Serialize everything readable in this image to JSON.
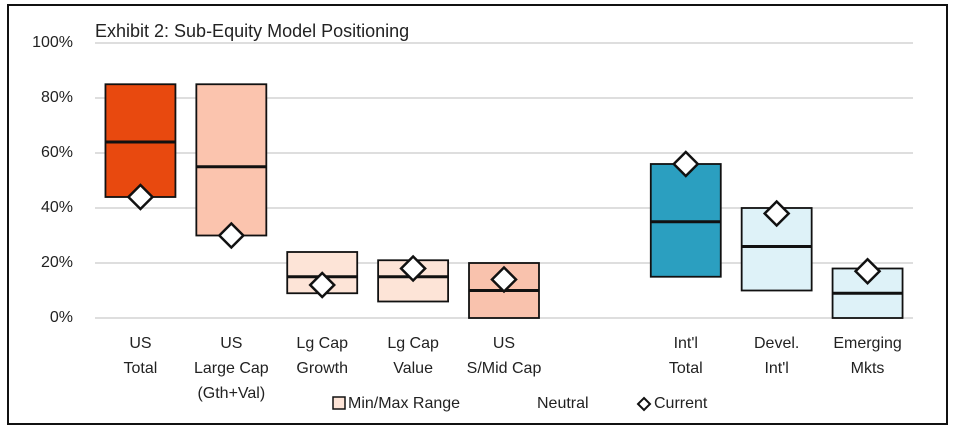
{
  "chart_data": {
    "type": "range",
    "title": "Exhibit 2: Sub-Equity Model Positioning",
    "categories": [
      [
        "US",
        "Total"
      ],
      [
        "US",
        "Large Cap",
        "(Gth+Val)"
      ],
      [
        "Lg Cap",
        "Growth"
      ],
      [
        "Lg Cap",
        "Value"
      ],
      [
        "US",
        "S/Mid Cap"
      ],
      null,
      [
        "Int'l",
        "Total"
      ],
      [
        "Devel.",
        "Int'l"
      ],
      [
        "Emerging",
        "Mkts"
      ]
    ],
    "colors": [
      "#e8490f",
      "#fbc4ae",
      "#fde4d7",
      "#fde4d7",
      "#f9c2ad",
      null,
      "#2b9fc0",
      "#def2f8",
      "#def2f8"
    ],
    "series": [
      {
        "name": "Min/Max Range",
        "low": [
          44,
          30,
          9,
          6,
          0,
          null,
          15,
          10,
          0
        ],
        "high": [
          85,
          85,
          24,
          21,
          20,
          null,
          56,
          40,
          18
        ]
      },
      {
        "name": "Neutral",
        "values": [
          64,
          55,
          15,
          15,
          10,
          null,
          35,
          26,
          9
        ]
      },
      {
        "name": "Current",
        "values": [
          44,
          30,
          12,
          18,
          14,
          null,
          56,
          38,
          17
        ]
      }
    ],
    "ylim": [
      0,
      100
    ],
    "yticks": [
      {
        "value": 0,
        "label": "0%"
      },
      {
        "value": 20,
        "label": "20%"
      },
      {
        "value": 40,
        "label": "40%"
      },
      {
        "value": 60,
        "label": "60%"
      },
      {
        "value": 80,
        "label": "80%"
      },
      {
        "value": 100,
        "label": "100%"
      }
    ],
    "grid": true
  }
}
